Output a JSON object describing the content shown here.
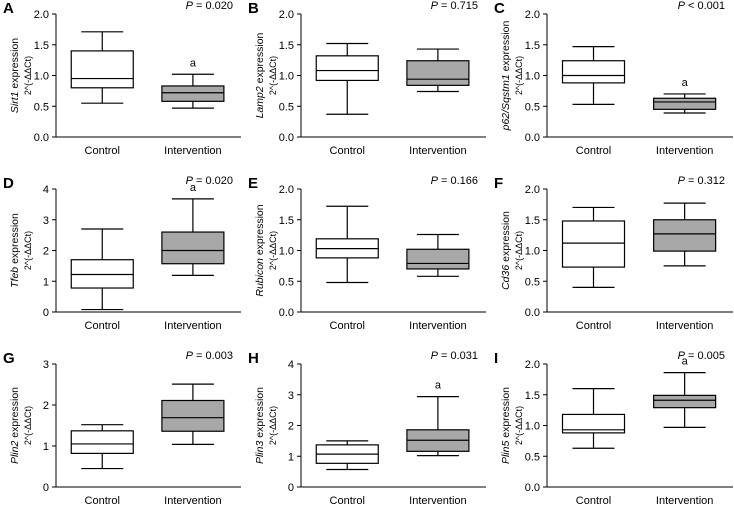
{
  "colors": {
    "control_fill": "#ffffff",
    "intervention_fill": "#a8a8a8",
    "stroke": "#000000"
  },
  "chart_data": [
    {
      "panel": "A",
      "type": "box",
      "gene": "Sirt1",
      "ylabel_suffix": "expression",
      "ylabel_sub": "2^(-ΔΔCt)",
      "p_prefix": "P",
      "p_text": " = 0.020",
      "categories": [
        "Control",
        "Intervention"
      ],
      "ylim": [
        0,
        2.0
      ],
      "yticks": [
        "0.0",
        "0.5",
        "1.0",
        "1.5",
        "2.0"
      ],
      "ytick_values": [
        0,
        0.5,
        1.0,
        1.5,
        2.0
      ],
      "boxes": [
        {
          "min": 0.55,
          "q1": 0.8,
          "median": 0.95,
          "q3": 1.4,
          "max": 1.71,
          "mark": ""
        },
        {
          "min": 0.47,
          "q1": 0.58,
          "median": 0.72,
          "q3": 0.83,
          "max": 1.02,
          "mark": "a"
        }
      ]
    },
    {
      "panel": "B",
      "type": "box",
      "gene": "Lamp2",
      "ylabel_suffix": "expression",
      "ylabel_sub": "2^(-ΔΔCt)",
      "p_prefix": "P",
      "p_text": " = 0.715",
      "categories": [
        "Control",
        "Intervention"
      ],
      "ylim": [
        0,
        2.0
      ],
      "yticks": [
        "0.0",
        "0.5",
        "1.0",
        "1.5",
        "2.0"
      ],
      "ytick_values": [
        0,
        0.5,
        1.0,
        1.5,
        2.0
      ],
      "boxes": [
        {
          "min": 0.37,
          "q1": 0.92,
          "median": 1.08,
          "q3": 1.32,
          "max": 1.52,
          "mark": ""
        },
        {
          "min": 0.74,
          "q1": 0.84,
          "median": 0.94,
          "q3": 1.24,
          "max": 1.43,
          "mark": ""
        }
      ]
    },
    {
      "panel": "C",
      "type": "box",
      "gene": "p62/Sqstm1",
      "ylabel_suffix": "expression",
      "ylabel_sub": "2^(-ΔΔCt)",
      "p_prefix": "P",
      "p_text": " < 0.001",
      "categories": [
        "Control",
        "Intervention"
      ],
      "ylim": [
        0,
        2.0
      ],
      "yticks": [
        "0.0",
        "0.5",
        "1.0",
        "1.5",
        "2.0"
      ],
      "ytick_values": [
        0,
        0.5,
        1.0,
        1.5,
        2.0
      ],
      "boxes": [
        {
          "min": 0.53,
          "q1": 0.88,
          "median": 1.0,
          "q3": 1.24,
          "max": 1.47,
          "mark": ""
        },
        {
          "min": 0.39,
          "q1": 0.45,
          "median": 0.57,
          "q3": 0.63,
          "max": 0.7,
          "mark": "a"
        }
      ]
    },
    {
      "panel": "D",
      "type": "box",
      "gene": "Tfeb",
      "ylabel_suffix": "expression",
      "ylabel_sub": "2^(-ΔΔCt)",
      "p_prefix": "P",
      "p_text": " = 0.020",
      "categories": [
        "Control",
        "Intervention"
      ],
      "ylim": [
        0,
        4
      ],
      "yticks": [
        "0",
        "1",
        "2",
        "3",
        "4"
      ],
      "ytick_values": [
        0,
        1,
        2,
        3,
        4
      ],
      "boxes": [
        {
          "min": 0.08,
          "q1": 0.78,
          "median": 1.22,
          "q3": 1.7,
          "max": 2.7,
          "mark": ""
        },
        {
          "min": 1.19,
          "q1": 1.57,
          "median": 2.0,
          "q3": 2.6,
          "max": 3.68,
          "mark": "a"
        }
      ]
    },
    {
      "panel": "E",
      "type": "box",
      "gene": "Rubicon",
      "ylabel_suffix": "expression",
      "ylabel_sub": "2^(-ΔΔCt)",
      "p_prefix": "P",
      "p_text": " = 0.166",
      "categories": [
        "Control",
        "Intervention"
      ],
      "ylim": [
        0,
        2.0
      ],
      "yticks": [
        "0.0",
        "0.5",
        "1.0",
        "1.5",
        "2.0"
      ],
      "ytick_values": [
        0,
        0.5,
        1.0,
        1.5,
        2.0
      ],
      "boxes": [
        {
          "min": 0.48,
          "q1": 0.88,
          "median": 1.03,
          "q3": 1.19,
          "max": 1.72,
          "mark": ""
        },
        {
          "min": 0.58,
          "q1": 0.7,
          "median": 0.79,
          "q3": 1.02,
          "max": 1.26,
          "mark": ""
        }
      ]
    },
    {
      "panel": "F",
      "type": "box",
      "gene": "Cd36",
      "ylabel_suffix": "expression",
      "ylabel_sub": "2^(-ΔΔCt)",
      "p_prefix": "P",
      "p_text": " = 0.312",
      "categories": [
        "Control",
        "Intervention"
      ],
      "ylim": [
        0,
        2.0
      ],
      "yticks": [
        "0.0",
        "0.5",
        "1.0",
        "1.5",
        "2.0"
      ],
      "ytick_values": [
        0,
        0.5,
        1.0,
        1.5,
        2.0
      ],
      "boxes": [
        {
          "min": 0.4,
          "q1": 0.73,
          "median": 1.12,
          "q3": 1.48,
          "max": 1.7,
          "mark": ""
        },
        {
          "min": 0.75,
          "q1": 0.99,
          "median": 1.27,
          "q3": 1.5,
          "max": 1.77,
          "mark": ""
        }
      ]
    },
    {
      "panel": "G",
      "type": "box",
      "gene": "Plin2",
      "ylabel_suffix": "expression",
      "ylabel_sub": "2^(-ΔΔCt)",
      "p_prefix": "P",
      "p_text": " = 0.003",
      "categories": [
        "Control",
        "Intervention"
      ],
      "ylim": [
        0,
        3
      ],
      "yticks": [
        "0",
        "1",
        "2",
        "3"
      ],
      "ytick_values": [
        0,
        1,
        2,
        3
      ],
      "boxes": [
        {
          "min": 0.45,
          "q1": 0.82,
          "median": 1.05,
          "q3": 1.37,
          "max": 1.52,
          "mark": ""
        },
        {
          "min": 1.04,
          "q1": 1.36,
          "median": 1.69,
          "q3": 2.11,
          "max": 2.51,
          "mark": ""
        }
      ]
    },
    {
      "panel": "H",
      "type": "box",
      "gene": "Plin3",
      "ylabel_suffix": "expression",
      "ylabel_sub": "2^(-ΔΔCt)",
      "p_prefix": "P",
      "p_text": " = 0.031",
      "categories": [
        "Control",
        "Intervention"
      ],
      "ylim": [
        0,
        4
      ],
      "yticks": [
        "0",
        "1",
        "2",
        "3",
        "4"
      ],
      "ytick_values": [
        0,
        1,
        2,
        3,
        4
      ],
      "boxes": [
        {
          "min": 0.57,
          "q1": 0.77,
          "median": 1.07,
          "q3": 1.37,
          "max": 1.5,
          "mark": ""
        },
        {
          "min": 1.02,
          "q1": 1.16,
          "median": 1.52,
          "q3": 1.86,
          "max": 2.94,
          "mark": "a"
        }
      ]
    },
    {
      "panel": "I",
      "type": "box",
      "gene": "Plin5",
      "ylabel_suffix": "expression",
      "ylabel_sub": "2^(-ΔΔCt)",
      "p_prefix": "P",
      "p_text": " = 0.005",
      "categories": [
        "Control",
        "Intervention"
      ],
      "ylim": [
        0,
        2.0
      ],
      "yticks": [
        "0.0",
        "0.5",
        "1.0",
        "1.5",
        "2.0"
      ],
      "ytick_values": [
        0,
        0.5,
        1.0,
        1.5,
        2.0
      ],
      "boxes": [
        {
          "min": 0.63,
          "q1": 0.88,
          "median": 0.93,
          "q3": 1.18,
          "max": 1.6,
          "mark": ""
        },
        {
          "min": 0.97,
          "q1": 1.29,
          "median": 1.41,
          "q3": 1.49,
          "max": 1.86,
          "mark": "a"
        }
      ]
    }
  ]
}
